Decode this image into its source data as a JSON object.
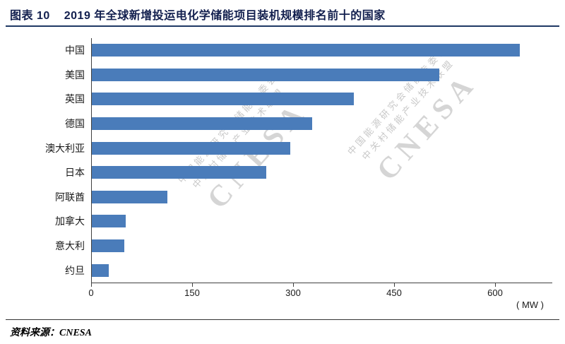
{
  "header": {
    "label": "图表 10",
    "title": "2019 年全球新增投运电化学储能项目装机规模排名前十的国家"
  },
  "chart_data": {
    "type": "bar",
    "orientation": "horizontal",
    "title": "2019 年全球新增投运电化学储能项目装机规模排名前十的国家",
    "categories": [
      "中国",
      "美国",
      "英国",
      "德国",
      "澳大利亚",
      "日本",
      "阿联酋",
      "加拿大",
      "意大利",
      "约旦"
    ],
    "values": [
      637,
      517,
      390,
      328,
      296,
      260,
      113,
      51,
      49,
      26
    ],
    "xlim": [
      0,
      685
    ],
    "xticks": [
      0,
      150,
      300,
      450,
      600
    ],
    "unit_label": "( MW )",
    "xlabel": "( MW )",
    "ylabel": "",
    "grid": false,
    "legend": null,
    "bar_color": "#4a7cba"
  },
  "watermark": {
    "lines": [
      "中国能源研究会储能专委会",
      "中关村储能产业技术联盟"
    ],
    "brand": "CNESA"
  },
  "footer": {
    "source_label": "资料来源：",
    "source_value": "CNESA"
  }
}
